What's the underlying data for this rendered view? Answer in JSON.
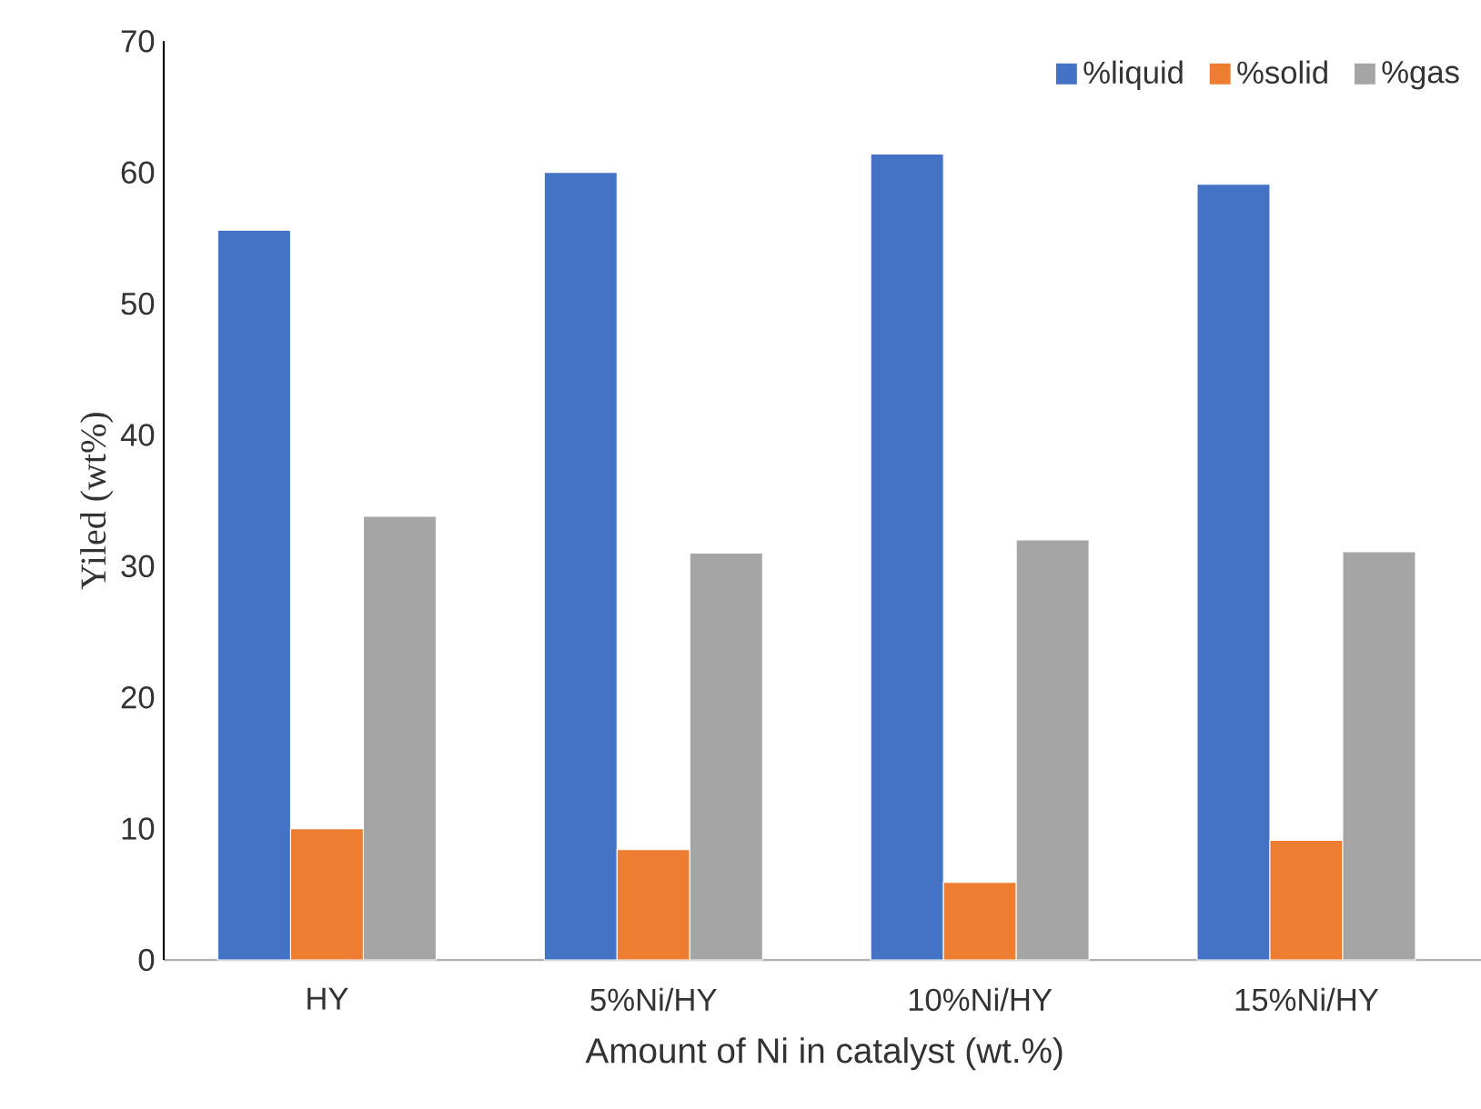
{
  "chart_data": {
    "type": "bar",
    "xlabel": "Amount of Ni in catalyst (wt.%)",
    "ylabel": "Yiled (wt%)",
    "categories": [
      "HY",
      "5%Ni/HY",
      "10%Ni/HY",
      "15%Ni/HY"
    ],
    "series": [
      {
        "name": "%liquid",
        "color": "#4472c4",
        "values": [
          55.6,
          60.0,
          61.4,
          59.1
        ]
      },
      {
        "name": "%solid",
        "color": "#ed7d31",
        "values": [
          10.0,
          8.4,
          5.9,
          9.1
        ]
      },
      {
        "name": "%gas",
        "color": "#a5a5a5",
        "values": [
          33.8,
          31.0,
          32.0,
          31.1
        ]
      }
    ],
    "ylim": [
      0,
      70
    ],
    "yticks": [
      0,
      10,
      20,
      30,
      40,
      50,
      60,
      70
    ],
    "legend": "top right"
  }
}
